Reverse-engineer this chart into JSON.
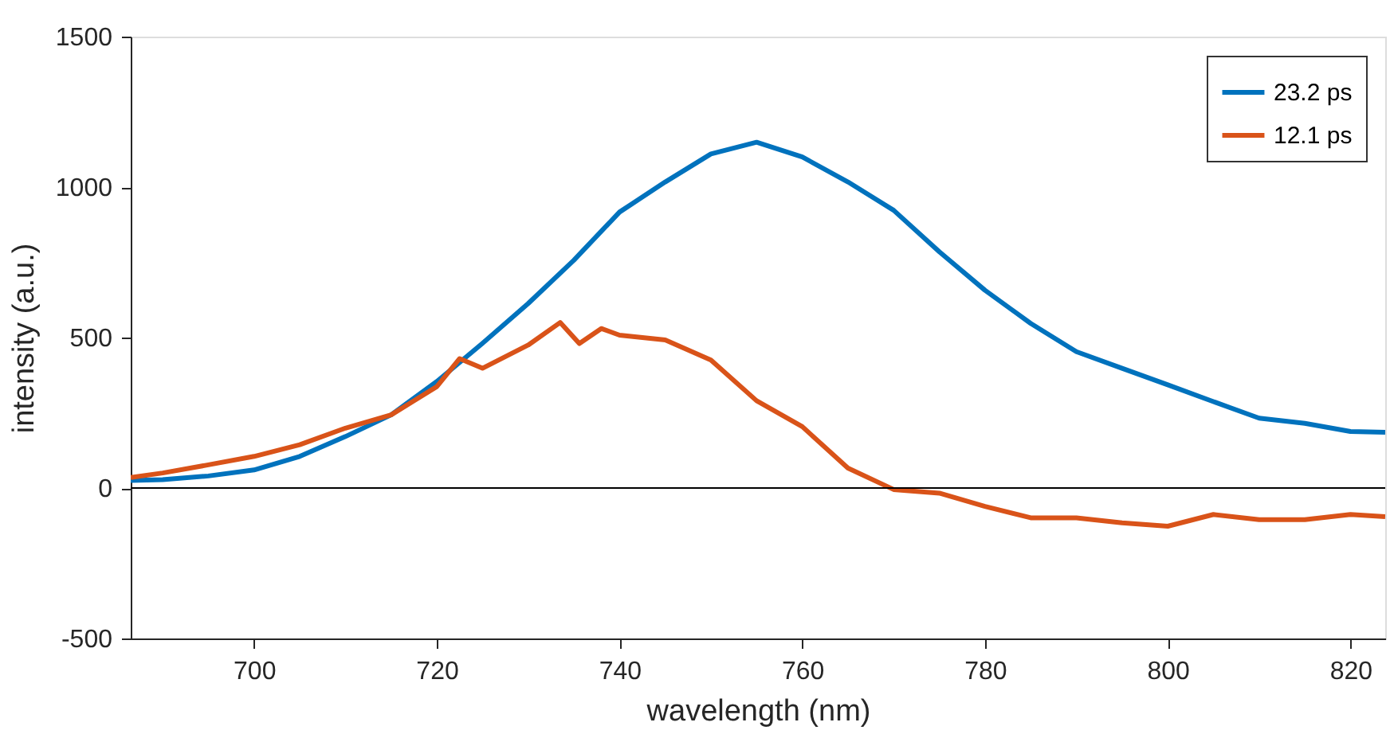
{
  "chart_data": {
    "type": "line",
    "xlabel": "wavelength (nm)",
    "ylabel": "intensity (a.u.)",
    "xlim": [
      686.5,
      823.8
    ],
    "xticks": [
      700,
      720,
      740,
      760,
      780,
      800,
      820
    ],
    "ylim": [
      -500,
      1500
    ],
    "yticks": [
      -500,
      0,
      500,
      1000,
      1500
    ],
    "grid": false,
    "legend": "top right",
    "marker": "none",
    "line_style": "solid",
    "ref_lines": [
      {
        "axis": "y",
        "value": 0,
        "color": "#000000"
      }
    ],
    "series": [
      {
        "name": "23.2 ps",
        "color": "#0072bd",
        "x": [
          686.5,
          690,
          695,
          700,
          705,
          710,
          715,
          720,
          725,
          730,
          735,
          740,
          745,
          750,
          755,
          760,
          765,
          770,
          775,
          780,
          785,
          790,
          795,
          800,
          805,
          810,
          815,
          820,
          823.8
        ],
        "values": [
          25,
          28,
          40,
          60,
          105,
          171,
          243,
          354,
          481,
          613,
          757,
          917,
          1017,
          1110,
          1149,
          1100,
          1017,
          923,
          785,
          657,
          547,
          453,
          398,
          343,
          287,
          232,
          215,
          188,
          185
        ]
      },
      {
        "name": "12.1 ps",
        "color": "#d95319",
        "x": [
          686.5,
          690,
          695,
          700,
          705,
          710,
          715,
          720,
          722.5,
          725,
          730,
          733.5,
          735.6,
          738,
          740,
          745,
          750,
          755,
          760,
          765,
          770,
          775,
          780,
          785,
          790,
          795,
          800,
          805,
          810,
          815,
          820,
          823.8
        ],
        "values": [
          35,
          50,
          77,
          105,
          144,
          199,
          243,
          337,
          430,
          398,
          475,
          550,
          480,
          530,
          508,
          492,
          425,
          290,
          204,
          66,
          -5,
          -17,
          -61,
          -99,
          -99,
          -116,
          -127,
          -88,
          -105,
          -105,
          -88,
          -95
        ]
      }
    ]
  }
}
